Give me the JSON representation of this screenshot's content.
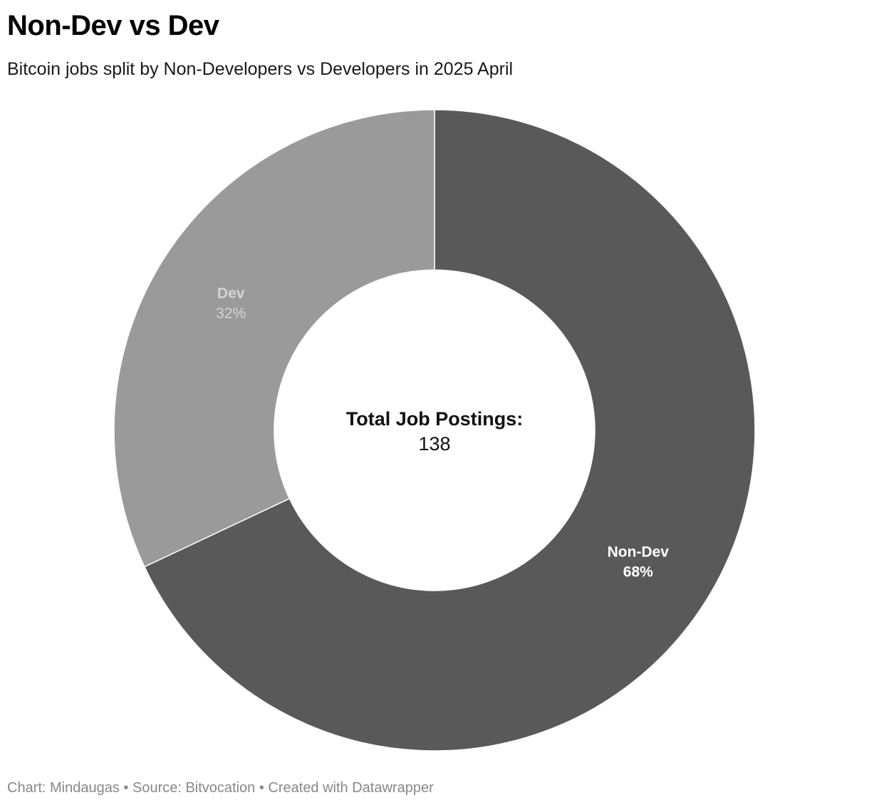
{
  "header": {
    "title": "Non-Dev vs Dev",
    "subtitle": "Bitcoin jobs split by Non-Developers vs Developers in 2025 April"
  },
  "chart_data": {
    "type": "pie",
    "variant": "donut",
    "categories": [
      "Non-Dev",
      "Dev"
    ],
    "values": [
      68,
      32
    ],
    "value_labels": [
      "68%",
      "32%"
    ],
    "unit": "%",
    "colors": [
      "#595959",
      "#9a9a9a"
    ],
    "label_colors": [
      "#ffffff",
      "#d4d4d4"
    ],
    "start_angle_deg": 0,
    "direction": "clockwise",
    "center_label": {
      "title": "Total Job Postings:",
      "value": "138"
    }
  },
  "footer": {
    "credit": "Chart: Mindaugas • Source: Bitvocation • Created with Datawrapper"
  }
}
